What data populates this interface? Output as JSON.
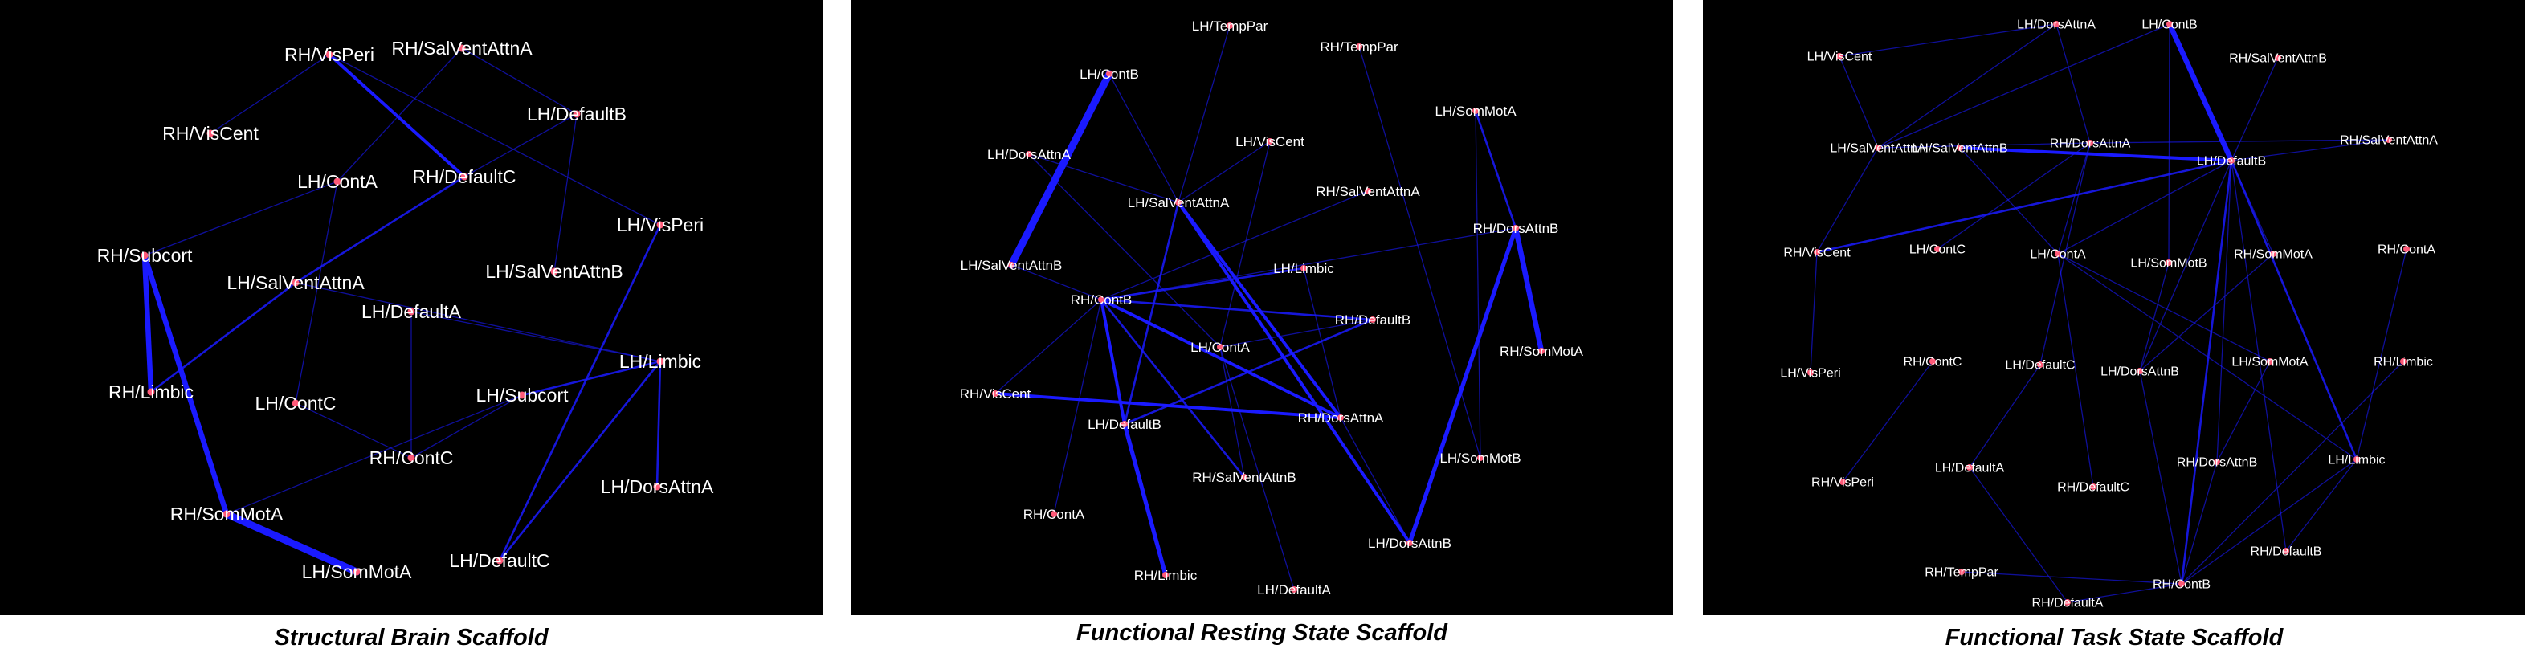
{
  "colors": {
    "background": "#000000",
    "edge": "#1a1aff",
    "node": "#ff5a78",
    "label": "#ffffff"
  },
  "panels": [
    {
      "caption": "Structural Brain Scaffold",
      "nodes": [
        {
          "id": "s1",
          "label": "RH/VisPeri"
        },
        {
          "id": "s2",
          "label": "RH/SalVentAttnA"
        },
        {
          "id": "s3",
          "label": "RH/VisCent"
        },
        {
          "id": "s4",
          "label": "LH/DefaultB"
        },
        {
          "id": "s5",
          "label": "LH/ContA"
        },
        {
          "id": "s6",
          "label": "RH/DefaultC"
        },
        {
          "id": "s7",
          "label": "LH/VisPeri"
        },
        {
          "id": "s8",
          "label": "RH/Subcort"
        },
        {
          "id": "s9",
          "label": "LH/SalVentAttnB"
        },
        {
          "id": "s10",
          "label": "LH/SalVentAttnA"
        },
        {
          "id": "s11",
          "label": "LH/DefaultA"
        },
        {
          "id": "s12",
          "label": "LH/Limbic"
        },
        {
          "id": "s13",
          "label": "RH/Limbic"
        },
        {
          "id": "s14",
          "label": "LH/ContC"
        },
        {
          "id": "s15",
          "label": "LH/Subcort"
        },
        {
          "id": "s16",
          "label": "RH/ContC"
        },
        {
          "id": "s17",
          "label": "LH/DorsAttnA"
        },
        {
          "id": "s18",
          "label": "RH/SomMotA"
        },
        {
          "id": "s19",
          "label": "LH/DefaultC"
        },
        {
          "id": "s20",
          "label": "LH/SomMotA"
        }
      ],
      "edges": [
        {
          "from": "s8",
          "to": "s13",
          "weight": 5
        },
        {
          "from": "s8",
          "to": "s18",
          "weight": 5
        },
        {
          "from": "s18",
          "to": "s20",
          "weight": 7
        },
        {
          "from": "s1",
          "to": "s6",
          "weight": 3
        },
        {
          "from": "s6",
          "to": "s10",
          "weight": 2
        },
        {
          "from": "s10",
          "to": "s13",
          "weight": 2
        },
        {
          "from": "s7",
          "to": "s19",
          "weight": 2
        },
        {
          "from": "s12",
          "to": "s19",
          "weight": 2
        },
        {
          "from": "s12",
          "to": "s15",
          "weight": 2
        },
        {
          "from": "s12",
          "to": "s17",
          "weight": 2
        },
        {
          "from": "s10",
          "to": "s12",
          "weight": 1
        },
        {
          "from": "s2",
          "to": "s5",
          "weight": 1
        },
        {
          "from": "s1",
          "to": "s3",
          "weight": 1
        },
        {
          "from": "s4",
          "to": "s9",
          "weight": 1
        },
        {
          "from": "s5",
          "to": "s14",
          "weight": 1
        },
        {
          "from": "s11",
          "to": "s16",
          "weight": 1
        },
        {
          "from": "s14",
          "to": "s16",
          "weight": 1
        },
        {
          "from": "s15",
          "to": "s16",
          "weight": 1
        },
        {
          "from": "s11",
          "to": "s12",
          "weight": 1
        },
        {
          "from": "s1",
          "to": "s7",
          "weight": 1
        },
        {
          "from": "s2",
          "to": "s4",
          "weight": 1
        },
        {
          "from": "s18",
          "to": "s15",
          "weight": 1
        },
        {
          "from": "s5",
          "to": "s8",
          "weight": 1
        },
        {
          "from": "s6",
          "to": "s4",
          "weight": 1
        }
      ]
    },
    {
      "caption": "Functional Resting State Scaffold",
      "nodes": [
        {
          "id": "r1",
          "label": "LH/TempPar"
        },
        {
          "id": "r2",
          "label": "RH/TempPar"
        },
        {
          "id": "r3",
          "label": "LH/ContB"
        },
        {
          "id": "r4",
          "label": "LH/SomMotA"
        },
        {
          "id": "r5",
          "label": "LH/DorsAttnA"
        },
        {
          "id": "r6",
          "label": "LH/VisCent"
        },
        {
          "id": "r7",
          "label": "LH/SalVentAttnA"
        },
        {
          "id": "r8",
          "label": "RH/SalVentAttnA"
        },
        {
          "id": "r9",
          "label": "RH/DorsAttnB"
        },
        {
          "id": "r10",
          "label": "LH/SalVentAttnB"
        },
        {
          "id": "r11",
          "label": "LH/Limbic"
        },
        {
          "id": "r12",
          "label": "RH/ContB"
        },
        {
          "id": "r13",
          "label": "RH/DefaultB"
        },
        {
          "id": "r14",
          "label": "RH/SomMotA"
        },
        {
          "id": "r15",
          "label": "LH/ContA"
        },
        {
          "id": "r16",
          "label": "RH/VisCent"
        },
        {
          "id": "r17",
          "label": "LH/DefaultB"
        },
        {
          "id": "r18",
          "label": "RH/DorsAttnA"
        },
        {
          "id": "r19",
          "label": "LH/SomMotB"
        },
        {
          "id": "r20",
          "label": "RH/SalVentAttnB"
        },
        {
          "id": "r21",
          "label": "RH/ContA"
        },
        {
          "id": "r22",
          "label": "LH/DorsAttnB"
        },
        {
          "id": "r23",
          "label": "RH/Limbic"
        },
        {
          "id": "r24",
          "label": "LH/DefaultA"
        }
      ],
      "edges": [
        {
          "from": "r3",
          "to": "r10",
          "weight": 7
        },
        {
          "from": "r9",
          "to": "r14",
          "weight": 5
        },
        {
          "from": "r9",
          "to": "r22",
          "weight": 4
        },
        {
          "from": "r17",
          "to": "r23",
          "weight": 4
        },
        {
          "from": "r16",
          "to": "r18",
          "weight": 3
        },
        {
          "from": "r12",
          "to": "r17",
          "weight": 3
        },
        {
          "from": "r12",
          "to": "r18",
          "weight": 3
        },
        {
          "from": "r7",
          "to": "r18",
          "weight": 3
        },
        {
          "from": "r7",
          "to": "r22",
          "weight": 3
        },
        {
          "from": "r12",
          "to": "r13",
          "weight": 2
        },
        {
          "from": "r12",
          "to": "r11",
          "weight": 2
        },
        {
          "from": "r12",
          "to": "r20",
          "weight": 2
        },
        {
          "from": "r7",
          "to": "r17",
          "weight": 2
        },
        {
          "from": "r17",
          "to": "r13",
          "weight": 2
        },
        {
          "from": "r4",
          "to": "r9",
          "weight": 2
        },
        {
          "from": "r4",
          "to": "r19",
          "weight": 1
        },
        {
          "from": "r12",
          "to": "r21",
          "weight": 1
        },
        {
          "from": "r3",
          "to": "r7",
          "weight": 1
        },
        {
          "from": "r5",
          "to": "r7",
          "weight": 1
        },
        {
          "from": "r6",
          "to": "r7",
          "weight": 1
        },
        {
          "from": "r1",
          "to": "r7",
          "weight": 1
        },
        {
          "from": "r2",
          "to": "r19",
          "weight": 1
        },
        {
          "from": "r15",
          "to": "r13",
          "weight": 1
        },
        {
          "from": "r15",
          "to": "r24",
          "weight": 1
        },
        {
          "from": "r15",
          "to": "r20",
          "weight": 1
        },
        {
          "from": "r8",
          "to": "r12",
          "weight": 1
        },
        {
          "from": "r11",
          "to": "r18",
          "weight": 1
        },
        {
          "from": "r9",
          "to": "r12",
          "weight": 1
        },
        {
          "from": "r22",
          "to": "r18",
          "weight": 1
        },
        {
          "from": "r5",
          "to": "r15",
          "weight": 1
        },
        {
          "from": "r10",
          "to": "r12",
          "weight": 1
        },
        {
          "from": "r16",
          "to": "r12",
          "weight": 1
        },
        {
          "from": "r6",
          "to": "r15",
          "weight": 1
        }
      ]
    },
    {
      "caption": "Functional Task State Scaffold",
      "nodes": [
        {
          "id": "t1",
          "label": "LH/DorsAttnA"
        },
        {
          "id": "t2",
          "label": "LH/ContB"
        },
        {
          "id": "t3",
          "label": "LH/VisCent"
        },
        {
          "id": "t4",
          "label": "RH/SalVentAttnB"
        },
        {
          "id": "t5",
          "label": "LH/SalVentAttnA"
        },
        {
          "id": "t6",
          "label": "RH/SalVentAttnA"
        },
        {
          "id": "t7",
          "label": "LH/SalVentAttnB"
        },
        {
          "id": "t8",
          "label": "RH/DorsAttnA"
        },
        {
          "id": "t9",
          "label": "LH/DefaultB"
        },
        {
          "id": "t10",
          "label": "RH/VisCent"
        },
        {
          "id": "t11",
          "label": "LH/ContC"
        },
        {
          "id": "t12",
          "label": "LH/ContA"
        },
        {
          "id": "t13",
          "label": "LH/SomMotB"
        },
        {
          "id": "t14",
          "label": "RH/SomMotA"
        },
        {
          "id": "t15",
          "label": "RH/ContA"
        },
        {
          "id": "t16",
          "label": "RH/ContC"
        },
        {
          "id": "t17",
          "label": "LH/DefaultC"
        },
        {
          "id": "t18",
          "label": "LH/DorsAttnB"
        },
        {
          "id": "t19",
          "label": "LH/SomMotA"
        },
        {
          "id": "t20",
          "label": "RH/Limbic"
        },
        {
          "id": "t21",
          "label": "LH/VisPeri"
        },
        {
          "id": "t22",
          "label": "RH/DorsAttnB"
        },
        {
          "id": "t23",
          "label": "LH/Limbic"
        },
        {
          "id": "t24",
          "label": "LH/DefaultA"
        },
        {
          "id": "t25",
          "label": "RH/VisPeri"
        },
        {
          "id": "t26",
          "label": "RH/DefaultC"
        },
        {
          "id": "t27",
          "label": "RH/DefaultB"
        },
        {
          "id": "t28",
          "label": "RH/TempPar"
        },
        {
          "id": "t29",
          "label": "RH/ContB"
        },
        {
          "id": "t30",
          "label": "RH/DefaultA"
        }
      ],
      "edges": [
        {
          "from": "t2",
          "to": "t9",
          "weight": 5
        },
        {
          "from": "t7",
          "to": "t9",
          "weight": 3
        },
        {
          "from": "t9",
          "to": "t10",
          "weight": 2
        },
        {
          "from": "t9",
          "to": "t29",
          "weight": 2
        },
        {
          "from": "t9",
          "to": "t23",
          "weight": 2
        },
        {
          "from": "t9",
          "to": "t27",
          "weight": 1
        },
        {
          "from": "t9",
          "to": "t22",
          "weight": 1
        },
        {
          "from": "t9",
          "to": "t18",
          "weight": 1
        },
        {
          "from": "t9",
          "to": "t14",
          "weight": 1
        },
        {
          "from": "t9",
          "to": "t4",
          "weight": 1
        },
        {
          "from": "t9",
          "to": "t6",
          "weight": 1
        },
        {
          "from": "t9",
          "to": "t12",
          "weight": 1
        },
        {
          "from": "t2",
          "to": "t13",
          "weight": 1
        },
        {
          "from": "t2",
          "to": "t5",
          "weight": 1
        },
        {
          "from": "t1",
          "to": "t8",
          "weight": 1
        },
        {
          "from": "t1",
          "to": "t5",
          "weight": 1
        },
        {
          "from": "t3",
          "to": "t5",
          "weight": 1
        },
        {
          "from": "t5",
          "to": "t8",
          "weight": 1
        },
        {
          "from": "t8",
          "to": "t12",
          "weight": 1
        },
        {
          "from": "t8",
          "to": "t17",
          "weight": 1
        },
        {
          "from": "t8",
          "to": "t11",
          "weight": 1
        },
        {
          "from": "t10",
          "to": "t21",
          "weight": 1
        },
        {
          "from": "t5",
          "to": "t10",
          "weight": 1
        },
        {
          "from": "t12",
          "to": "t26",
          "weight": 1
        },
        {
          "from": "t12",
          "to": "t19",
          "weight": 1
        },
        {
          "from": "t16",
          "to": "t25",
          "weight": 1
        },
        {
          "from": "t17",
          "to": "t24",
          "weight": 1
        },
        {
          "from": "t24",
          "to": "t30",
          "weight": 1
        },
        {
          "from": "t28",
          "to": "t29",
          "weight": 1
        },
        {
          "from": "t29",
          "to": "t30",
          "weight": 1
        },
        {
          "from": "t18",
          "to": "t29",
          "weight": 1
        },
        {
          "from": "t22",
          "to": "t29",
          "weight": 1
        },
        {
          "from": "t23",
          "to": "t29",
          "weight": 1
        },
        {
          "from": "t20",
          "to": "t29",
          "weight": 1
        },
        {
          "from": "t15",
          "to": "t23",
          "weight": 1
        },
        {
          "from": "t19",
          "to": "t22",
          "weight": 1
        },
        {
          "from": "t14",
          "to": "t18",
          "weight": 1
        },
        {
          "from": "t13",
          "to": "t18",
          "weight": 1
        },
        {
          "from": "t7",
          "to": "t12",
          "weight": 1
        },
        {
          "from": "t1",
          "to": "t3",
          "weight": 1
        },
        {
          "from": "t23",
          "to": "t27",
          "weight": 1
        },
        {
          "from": "t12",
          "to": "t23",
          "weight": 1
        },
        {
          "from": "t8",
          "to": "t6",
          "weight": 1
        }
      ]
    }
  ]
}
